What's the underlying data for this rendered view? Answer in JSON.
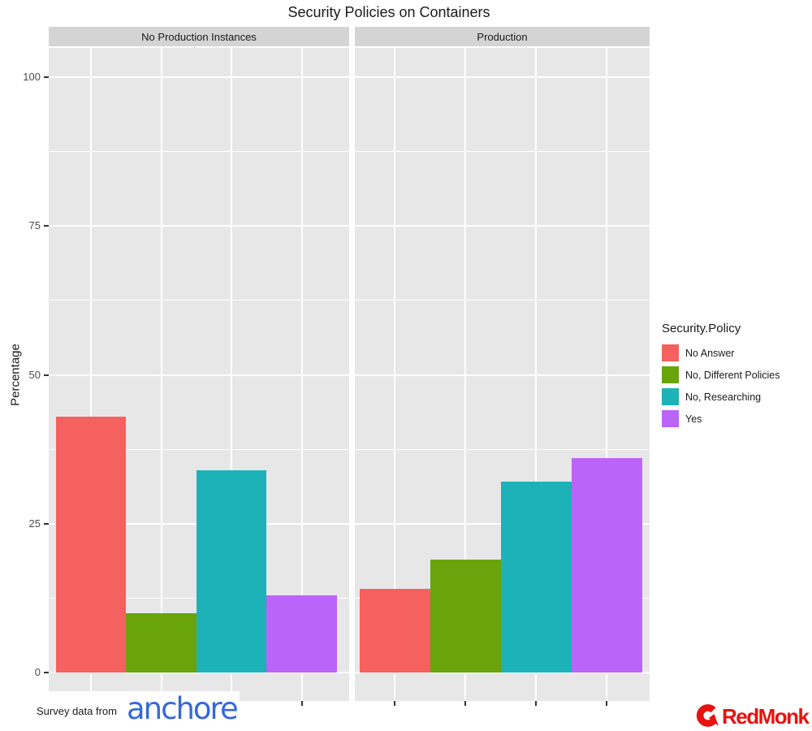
{
  "title": "Security Policies on Containers",
  "y_axis": {
    "label": "Percentage",
    "tick_labels": [
      "0",
      "25",
      "50",
      "75",
      "100"
    ]
  },
  "legend": {
    "title": "Security.Policy",
    "items": [
      {
        "label": "No Answer",
        "color": "#F4615E"
      },
      {
        "label": "No, Different Policies",
        "color": "#69A40C"
      },
      {
        "label": "No, Researching",
        "color": "#1DB2B8"
      },
      {
        "label": "Yes",
        "color": "#BB64FA"
      }
    ]
  },
  "chart_data": {
    "type": "bar",
    "title": "Security Policies on Containers",
    "xlabel": "",
    "ylabel": "Percentage",
    "ylim": [
      0,
      100
    ],
    "y_major_breaks": [
      0,
      25,
      50,
      75,
      100
    ],
    "y_minor_breaks": [
      12.5,
      37.5,
      62.5,
      87.5
    ],
    "grid": true,
    "panel_background": "#E7E7E7",
    "strip_background": "#D4D4D4",
    "legend_position": "right",
    "categories": [
      "No Answer",
      "No, Different Policies",
      "No, Researching",
      "Yes"
    ],
    "series_colors": [
      "#F4615E",
      "#69A40C",
      "#1DB2B8",
      "#BB64FA"
    ],
    "facets": [
      {
        "label": "No Production Instances",
        "values": [
          43,
          10,
          34,
          13
        ]
      },
      {
        "label": "Production",
        "values": [
          14,
          19,
          32,
          36
        ]
      }
    ]
  },
  "footer": {
    "attribution_prefix": "Survey data from",
    "anchore_wordmark": "anchore",
    "anchore_color": "#3568DB",
    "redmonk_wordmark": "RedMonk",
    "redmonk_color": "#E8120E"
  }
}
